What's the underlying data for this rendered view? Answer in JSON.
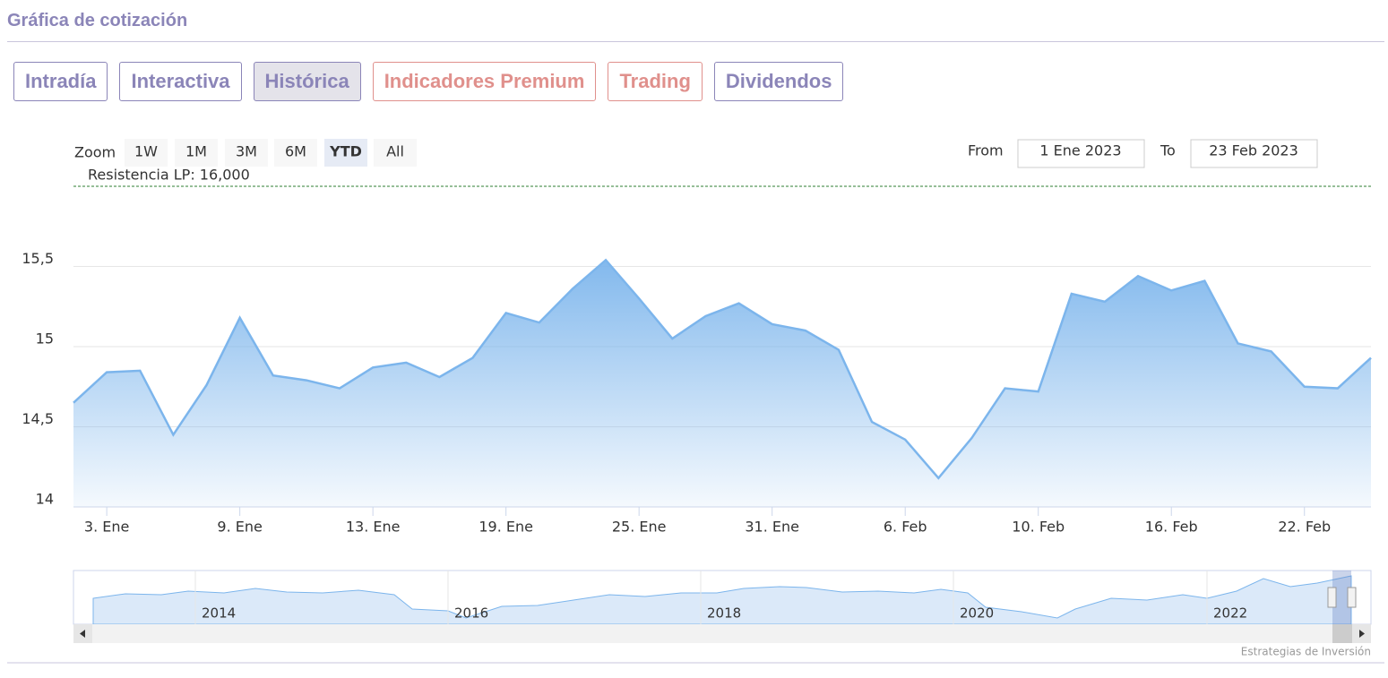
{
  "header": {
    "title": "Gráfica de cotización"
  },
  "tabs": [
    {
      "label": "Intradía",
      "color": "#8b85b8"
    },
    {
      "label": "Interactiva",
      "color": "#8b85b8"
    },
    {
      "label": "Histórica",
      "color": "#8b85b8"
    },
    {
      "label": "Indicadores Premium",
      "color": "#e0908c"
    },
    {
      "label": "Trading",
      "color": "#e0908c"
    },
    {
      "label": "Dividendos",
      "color": "#8b85b8"
    }
  ],
  "active_tab": 2,
  "zoom": {
    "label": "Zoom",
    "buttons": [
      "1W",
      "1M",
      "3M",
      "6M",
      "YTD",
      "All"
    ],
    "selected": 4
  },
  "range": {
    "from_label": "From",
    "from": "1 Ene 2023",
    "to_label": "To",
    "to": "23 Feb 2023"
  },
  "chart_data": {
    "type": "area",
    "color": "#7cb5ec",
    "categories": [
      null,
      "3. Ene",
      null,
      null,
      null,
      "9. Ene",
      null,
      null,
      null,
      "13. Ene",
      null,
      null,
      null,
      "19. Ene",
      null,
      null,
      null,
      "25. Ene",
      null,
      null,
      null,
      "31. Ene",
      null,
      null,
      null,
      "6. Feb",
      null,
      null,
      null,
      "10. Feb",
      null,
      null,
      null,
      "16. Feb",
      null,
      null,
      null,
      "22. Feb",
      null,
      null
    ],
    "values": [
      14.65,
      14.84,
      14.85,
      14.45,
      14.76,
      15.18,
      14.82,
      14.79,
      14.74,
      14.87,
      14.9,
      14.81,
      14.93,
      15.21,
      15.15,
      15.36,
      15.54,
      15.3,
      15.05,
      15.19,
      15.27,
      15.14,
      15.1,
      14.98,
      14.53,
      14.42,
      14.18,
      14.43,
      14.74,
      14.72,
      15.33,
      15.28,
      15.44,
      15.35,
      15.41,
      15.02,
      14.97,
      14.75,
      14.74,
      14.93
    ],
    "ylim": [
      14,
      16
    ],
    "yticks": [
      14,
      {
        "value": 14.5,
        "label": "14,5"
      },
      15,
      {
        "value": 15.5,
        "label": "15,5"
      }
    ],
    "grid": true,
    "resistance": {
      "value": 16,
      "label": "Resistencia LP: 16,000",
      "color": "#2e7d32"
    }
  },
  "navigator": {
    "years": [
      "2014",
      "2016",
      "2018",
      "2020",
      "2022"
    ]
  },
  "credits": "Estrategias de Inversión"
}
